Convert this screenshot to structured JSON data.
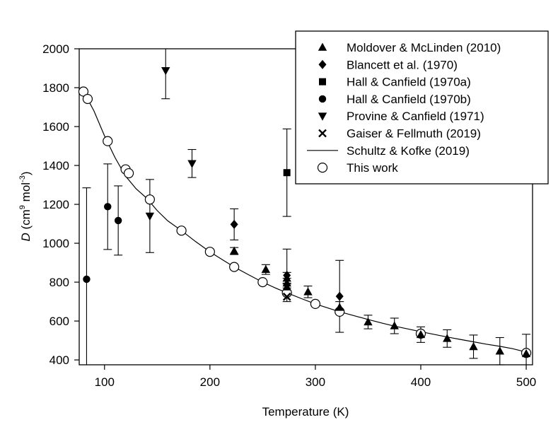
{
  "chart_data": {
    "type": "scatter",
    "xlabel": "Temperature (K)",
    "ylabel": {
      "italic": "D",
      "pre": " (cm",
      "sup1": "9",
      "mid": " mol",
      "sup2": "-3",
      "post": ")"
    },
    "xlim": [
      76,
      506
    ],
    "ylim": [
      375,
      2000
    ],
    "xticks": [
      100,
      200,
      300,
      400,
      500
    ],
    "yticks": [
      400,
      600,
      800,
      1000,
      1200,
      1400,
      1600,
      1800,
      2000
    ],
    "legend_position": "top-right",
    "series": [
      {
        "name": "Moldover & McLinden (2010)",
        "marker": "triangle-up",
        "points": [
          {
            "x": 223,
            "y": 960,
            "err": 18
          },
          {
            "x": 253,
            "y": 865,
            "err": 25
          },
          {
            "x": 273,
            "y": 820,
            "err": 30
          },
          {
            "x": 273,
            "y": 795,
            "err": 25
          },
          {
            "x": 273,
            "y": 775,
            "err": 20
          },
          {
            "x": 293,
            "y": 750,
            "err": 30
          },
          {
            "x": 323,
            "y": 670,
            "err": 30
          },
          {
            "x": 350,
            "y": 595,
            "err": 35
          },
          {
            "x": 375,
            "y": 575,
            "err": 40
          },
          {
            "x": 400,
            "y": 530,
            "err": 40
          },
          {
            "x": 425,
            "y": 510,
            "err": 45
          },
          {
            "x": 450,
            "y": 468,
            "err": 60
          },
          {
            "x": 475,
            "y": 445,
            "err": 70
          },
          {
            "x": 500,
            "y": 432,
            "err": 100
          }
        ]
      },
      {
        "name": "Blancett et al. (1970)",
        "marker": "diamond",
        "points": [
          {
            "x": 223,
            "y": 1097,
            "err": 80
          },
          {
            "x": 273,
            "y": 835,
            "err": 135
          },
          {
            "x": 323,
            "y": 727,
            "err": 185
          }
        ]
      },
      {
        "name": "Hall & Canfield (1970a)",
        "marker": "square",
        "points": [
          {
            "x": 273,
            "y": 1363,
            "err": 225
          }
        ]
      },
      {
        "name": "Hall & Canfield (1970b)",
        "marker": "circle-filled",
        "points": [
          {
            "x": 83,
            "y": 815,
            "err": 470
          },
          {
            "x": 103,
            "y": 1188,
            "err": 220
          },
          {
            "x": 113,
            "y": 1117,
            "err": 178
          }
        ]
      },
      {
        "name": "Provine & Canfield (1971)",
        "marker": "triangle-down",
        "points": [
          {
            "x": 143,
            "y": 1140,
            "err": 188
          },
          {
            "x": 158,
            "y": 1888,
            "err": 145
          },
          {
            "x": 183,
            "y": 1410,
            "err": 72
          }
        ]
      },
      {
        "name": "Gaiser & Fellmuth (2019)",
        "marker": "cross",
        "points": [
          {
            "x": 273,
            "y": 725,
            "err": 0
          }
        ]
      },
      {
        "name": "Schultz & Kofke (2019)",
        "marker": "line",
        "curve": [
          [
            80,
            1782
          ],
          [
            90,
            1680
          ],
          [
            100,
            1552
          ],
          [
            110,
            1440
          ],
          [
            120,
            1345
          ],
          [
            130,
            1280
          ],
          [
            140,
            1232
          ],
          [
            150,
            1168
          ],
          [
            160,
            1115
          ],
          [
            173,
            1065
          ],
          [
            186,
            1010
          ],
          [
            200,
            956
          ],
          [
            212,
            915
          ],
          [
            223,
            878
          ],
          [
            236,
            840
          ],
          [
            250,
            800
          ],
          [
            262,
            770
          ],
          [
            273,
            745
          ],
          [
            287,
            715
          ],
          [
            300,
            688
          ],
          [
            312,
            667
          ],
          [
            323,
            648
          ],
          [
            337,
            627
          ],
          [
            350,
            608
          ],
          [
            363,
            590
          ],
          [
            375,
            574
          ],
          [
            387,
            560
          ],
          [
            400,
            545
          ],
          [
            412,
            532
          ],
          [
            425,
            518
          ],
          [
            437,
            506
          ],
          [
            450,
            493
          ],
          [
            462,
            481
          ],
          [
            475,
            470
          ],
          [
            487,
            458
          ],
          [
            500,
            440
          ]
        ]
      },
      {
        "name": "This work",
        "marker": "circle-open",
        "points": [
          {
            "x": 80,
            "y": 1780,
            "err": 0
          },
          {
            "x": 84,
            "y": 1742,
            "err": 0
          },
          {
            "x": 103,
            "y": 1525,
            "err": 0
          },
          {
            "x": 120,
            "y": 1380,
            "err": 0
          },
          {
            "x": 123,
            "y": 1360,
            "err": 0
          },
          {
            "x": 143,
            "y": 1225,
            "err": 0
          },
          {
            "x": 173,
            "y": 1065,
            "err": 0
          },
          {
            "x": 200,
            "y": 956,
            "err": 0
          },
          {
            "x": 223,
            "y": 878,
            "err": 0
          },
          {
            "x": 250,
            "y": 800,
            "err": 0
          },
          {
            "x": 273,
            "y": 745,
            "err": 0
          },
          {
            "x": 300,
            "y": 688,
            "err": 0
          },
          {
            "x": 323,
            "y": 648,
            "err": 0
          },
          {
            "x": 400,
            "y": 535,
            "err": 0
          },
          {
            "x": 500,
            "y": 436,
            "err": 0
          }
        ]
      }
    ]
  }
}
